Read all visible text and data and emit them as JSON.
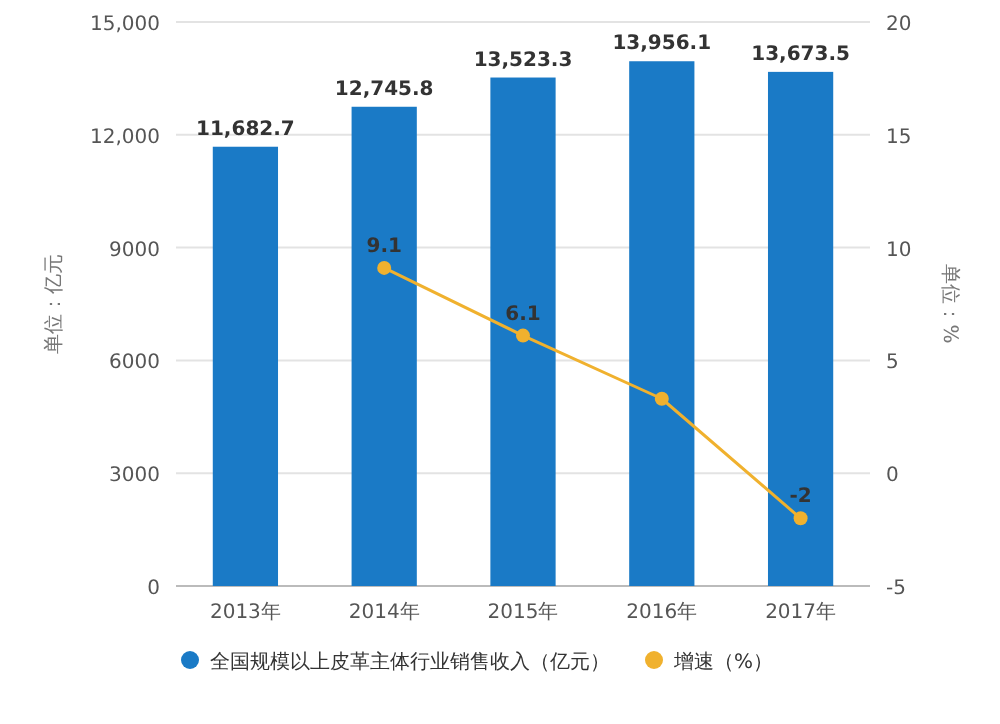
{
  "chart_data": {
    "type": "bar",
    "categories": [
      "2013年",
      "2014年",
      "2015年",
      "2016年",
      "2017年"
    ],
    "series": [
      {
        "name": "全国规模以上皮革主体行业销售收入（亿元）",
        "color": "#1a7ac6",
        "values": [
          11682.7,
          12745.8,
          13523.3,
          13956.1,
          13673.5
        ],
        "value_labels": [
          "11,682.7",
          "12,745.8",
          "13,523.3",
          "13,956.1",
          "13,673.5"
        ]
      },
      {
        "name": "增速（%）",
        "type": "line",
        "axis": "y2",
        "color": "#f0b12e",
        "marker": "circle",
        "values": [
          null,
          9.1,
          6.1,
          3.3,
          -2
        ],
        "value_labels": [
          null,
          "9.1",
          "6.1",
          null,
          "-2"
        ]
      }
    ],
    "ylim": [
      0,
      15000
    ],
    "yticks": [
      0,
      3000,
      6000,
      9000,
      {
        "value": 12000,
        "label": "12,000"
      },
      {
        "value": 15000,
        "label": "15,000"
      }
    ],
    "y2lim": [
      -5,
      20
    ],
    "y2ticks": [
      -5,
      0,
      5,
      10,
      15,
      20
    ],
    "ylabel": "单位：亿元",
    "y2label": "单位：%",
    "grid": "y",
    "legend": "bottom"
  }
}
